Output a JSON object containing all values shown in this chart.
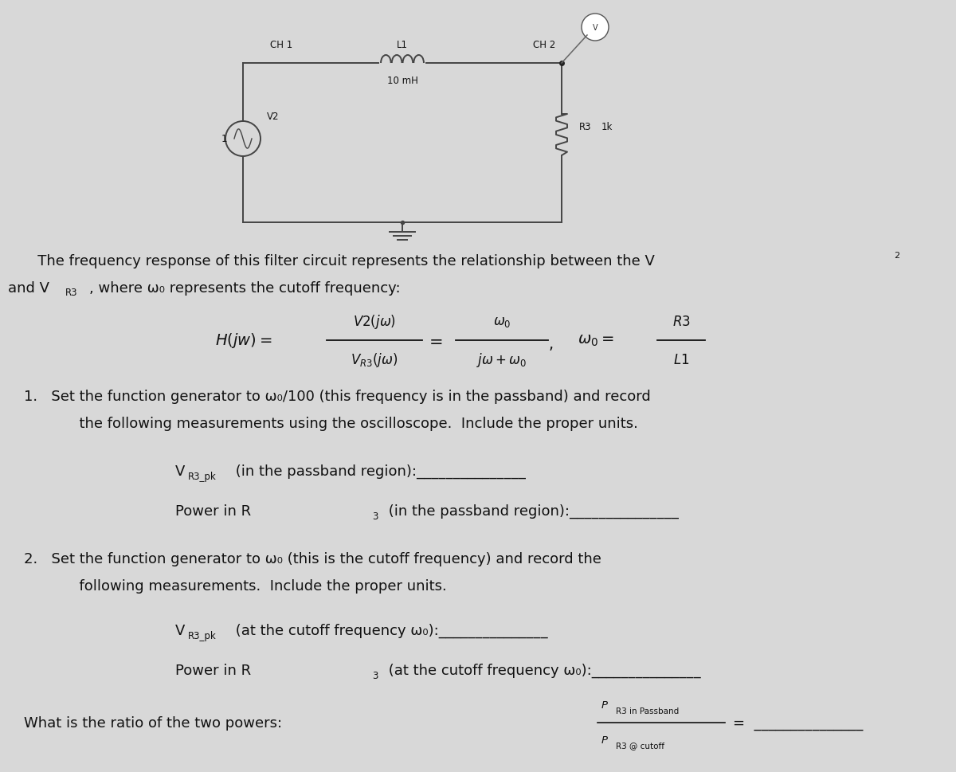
{
  "bg_color": "#d8d8d8",
  "paper_color": "#e8e8e4",
  "text_color": "#111111",
  "circuit": {
    "ch1_label": "CH 1",
    "ch2_label": "CH 2",
    "l1_label": "L1",
    "l1_value": "10 mH",
    "r3_label": "R3",
    "r3_value": "1k",
    "v2_label": "V2",
    "v1_label": "1"
  },
  "desc_line1": "   The frequency response of this filter circuit represents the relationship between the V",
  "desc_v2_sup": "2",
  "desc_line2": "and V",
  "desc_vr3": "R3",
  "desc_line2b": ", where ω₀ represents the cutoff frequency:",
  "item1_line1": "1.   Set the function generator to ω₀/100 (this frequency is in the passband) and record",
  "item1_line2": "      the following measurements using the oscilloscope.  Include the proper units.",
  "item1_vr3_pre": "V",
  "item1_vr3_sub": "R3_pk",
  "item1_vr3_post": " (in the passband region):_______________",
  "item1_power": "Power in R",
  "item1_power_sub": "3",
  "item1_power_post": " (in the passband region):_______________",
  "item2_line1": "2.   Set the function generator to ω₀ (this is the cutoff frequency) and record the",
  "item2_line2": "      following measurements.  Include the proper units.",
  "item2_vr3_pre": "V",
  "item2_vr3_sub": "R3_pk",
  "item2_vr3_post": " (at the cutoff frequency ω₀):_______________",
  "item2_power": "Power in R",
  "item2_power_sub": "3",
  "item2_power_post": " (at the cutoff frequency ω₀):_______________",
  "ratio_text": "What is the ratio of the two powers:",
  "ratio_num": "P",
  "ratio_num_sub": "R3 in Passband",
  "ratio_den": "P",
  "ratio_den_sub": "R3 @ cutoff",
  "ratio_eq_line": "=  _______________",
  "body_fontsize": 13,
  "small_fontsize": 10,
  "formula_fontsize": 13
}
